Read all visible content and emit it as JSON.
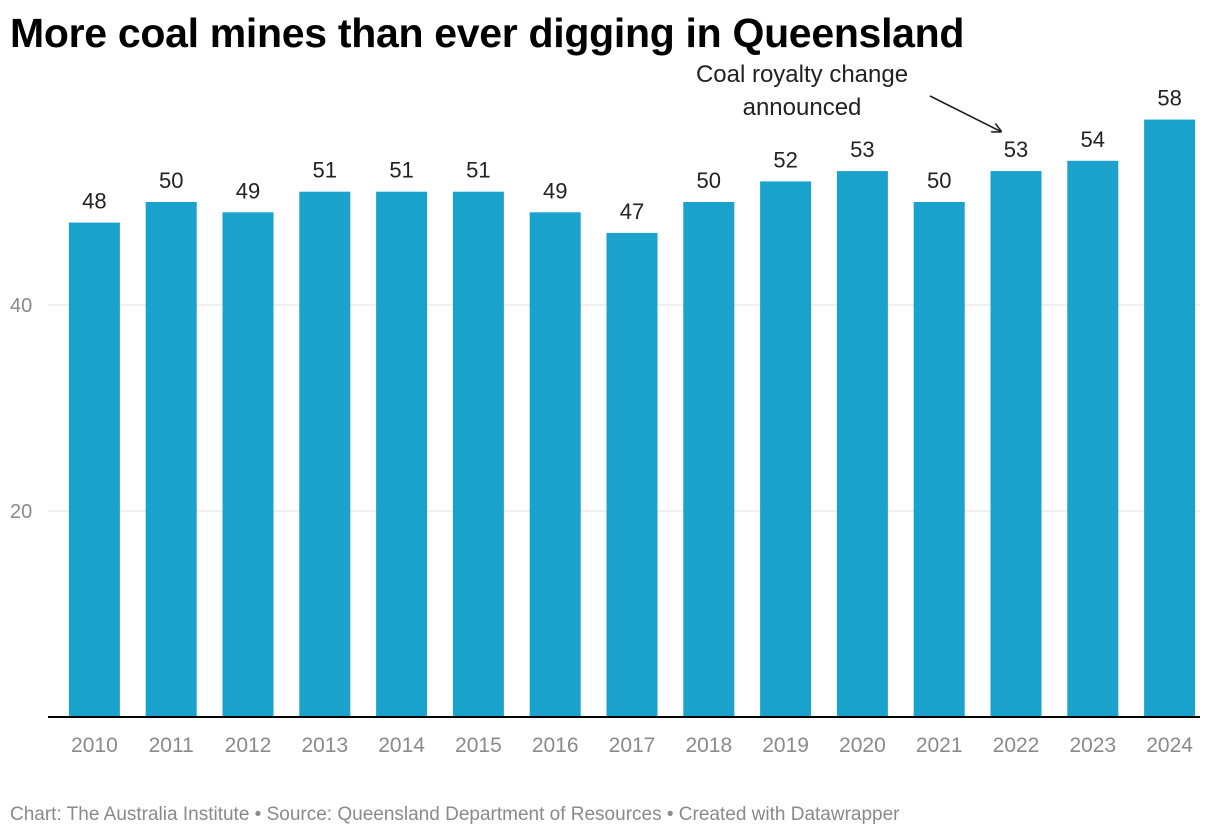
{
  "title": "More coal mines than ever digging in Queensland",
  "footer": "Chart: The Australia Institute • Source: Queensland Department of Resources • Created with Datawrapper",
  "colors": {
    "bar": "#1aa1cc",
    "axis": "#000000",
    "grid": "#e2e2e2",
    "tick_text": "#8a8a8a",
    "label_text": "#222222"
  },
  "chart_data": {
    "type": "bar",
    "title": "More coal mines than ever digging in Queensland",
    "xlabel": "",
    "ylabel": "",
    "categories": [
      "2010",
      "2011",
      "2012",
      "2013",
      "2014",
      "2015",
      "2016",
      "2017",
      "2018",
      "2019",
      "2020",
      "2021",
      "2022",
      "2023",
      "2024"
    ],
    "values": [
      48,
      50,
      49,
      51,
      51,
      51,
      49,
      47,
      50,
      52,
      53,
      50,
      53,
      54,
      58
    ],
    "ylim": [
      0,
      58
    ],
    "yticks": [
      20,
      40
    ],
    "grid": true,
    "data_labels": true,
    "annotation": {
      "text_lines": [
        "Coal royalty change",
        "announced"
      ],
      "category": "2022"
    }
  }
}
